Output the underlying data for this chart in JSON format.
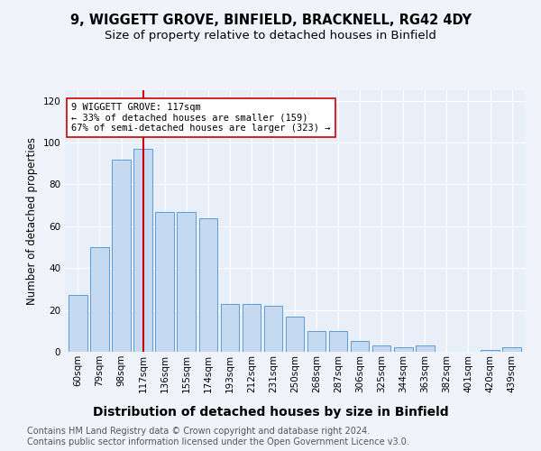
{
  "title": "9, WIGGETT GROVE, BINFIELD, BRACKNELL, RG42 4DY",
  "subtitle": "Size of property relative to detached houses in Binfield",
  "xlabel": "Distribution of detached houses by size in Binfield",
  "ylabel": "Number of detached properties",
  "categories": [
    "60sqm",
    "79sqm",
    "98sqm",
    "117sqm",
    "136sqm",
    "155sqm",
    "174sqm",
    "193sqm",
    "212sqm",
    "231sqm",
    "250sqm",
    "268sqm",
    "287sqm",
    "306sqm",
    "325sqm",
    "344sqm",
    "363sqm",
    "382sqm",
    "401sqm",
    "420sqm",
    "439sqm"
  ],
  "values": [
    27,
    50,
    92,
    97,
    67,
    67,
    64,
    23,
    23,
    22,
    17,
    10,
    10,
    5,
    3,
    2,
    3,
    0,
    0,
    1,
    2
  ],
  "bar_color": "#c5d9f1",
  "bar_edge_color": "#5b9bd5",
  "vline_x_idx": 3,
  "vline_color": "#cc0000",
  "annotation_text": "9 WIGGETT GROVE: 117sqm\n← 33% of detached houses are smaller (159)\n67% of semi-detached houses are larger (323) →",
  "annotation_box_color": "#ffffff",
  "annotation_box_edge": "#cc0000",
  "ylim": [
    0,
    125
  ],
  "yticks": [
    0,
    20,
    40,
    60,
    80,
    100,
    120
  ],
  "fig_bg_color": "#f0f4fa",
  "ax_bg_color": "#e8eff8",
  "footer": "Contains HM Land Registry data © Crown copyright and database right 2024.\nContains public sector information licensed under the Open Government Licence v3.0.",
  "title_fontsize": 10.5,
  "subtitle_fontsize": 9.5,
  "xlabel_fontsize": 10,
  "ylabel_fontsize": 8.5,
  "tick_fontsize": 7.5,
  "footer_fontsize": 7,
  "annotation_fontsize": 7.5
}
